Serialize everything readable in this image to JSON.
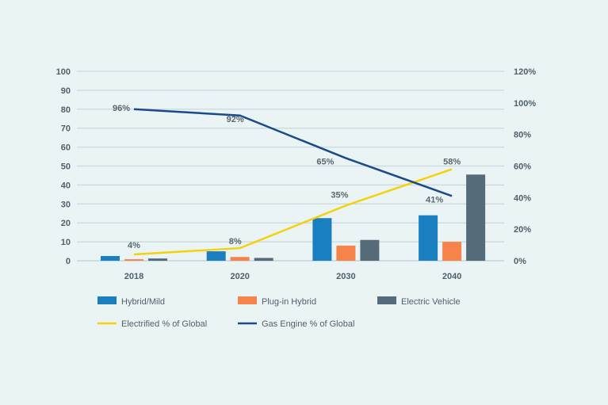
{
  "chart_data": {
    "type": "bar",
    "categories": [
      "2018",
      "2020",
      "2030",
      "2040"
    ],
    "series": [
      {
        "name": "Hybrid/Mild",
        "type": "bar",
        "axis": "left",
        "color": "#1a7fc1",
        "values": [
          2.5,
          5,
          22.5,
          24
        ]
      },
      {
        "name": "Plug-in Hybrid",
        "type": "bar",
        "axis": "left",
        "color": "#f5834a",
        "values": [
          0.8,
          2,
          8,
          10
        ]
      },
      {
        "name": "Electric Vehicle",
        "type": "bar",
        "axis": "left",
        "color": "#566b7a",
        "values": [
          1.2,
          1.5,
          11,
          45.5
        ]
      },
      {
        "name": "Electrified % of Global",
        "type": "line",
        "axis": "right",
        "color": "#f5d10a",
        "values": [
          4,
          8,
          35,
          58
        ],
        "labels": [
          "4%",
          "8%",
          "35%",
          "58%"
        ]
      },
      {
        "name": "Gas Engine % of Global",
        "type": "line",
        "axis": "right",
        "color": "#1b4a8a",
        "values": [
          96,
          92,
          65,
          41
        ],
        "labels": [
          "96%",
          "92%",
          "65%",
          "41%"
        ]
      }
    ],
    "ylim": [
      0,
      100
    ],
    "yticks": [
      "0",
      "10",
      "20",
      "30",
      "40",
      "50",
      "60",
      "70",
      "80",
      "90",
      "100"
    ],
    "y2lim": [
      0,
      120
    ],
    "y2ticks": [
      "0%",
      "20%",
      "40%",
      "60%",
      "80%",
      "100%",
      "120%"
    ],
    "grid": true,
    "legend": "bottom"
  }
}
